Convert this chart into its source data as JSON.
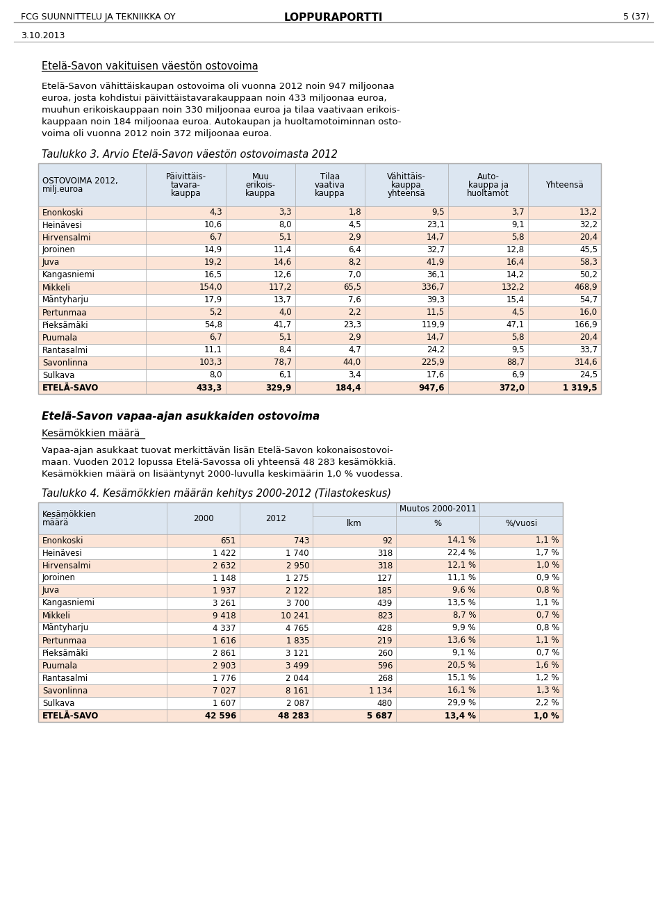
{
  "header_left": "FCG SUUNNITTELU JA TEKNIIKKA OY",
  "header_center": "LOPPURAPORTTI",
  "header_right": "5 (37)",
  "date": "3.10.2013",
  "intro_title": "Etelä-Savon vakituisen väestön ostovoima",
  "intro_body": [
    "Etelä-Savon vähittäiskaupan ostovoima oli vuonna 2012 noin 947 miljoonaa",
    "euroa, josta kohdistui päivittäistavarakauppaan noin 433 miljoonaa euroa,",
    "muuhun erikoiskauppaan noin 330 miljoonaa euroa ja tilaa vaativaan erikois-",
    "kauppaan noin 184 miljoonaa euroa. Autokaupan ja huoltamotoiminnan osto-",
    "voima oli vuonna 2012 noin 372 miljoonaa euroa."
  ],
  "table1_title": "Taulukko 3. Arvio Etelä-Savon väestön ostovoimasta 2012",
  "table1_headers": [
    "OSTOVOIMA 2012,\nmilj.euroa",
    "Päivittäis-\ntavara-\nkauppa",
    "Muu\nerikois-\nkauppa",
    "Tilaa\nvaativa\nkauppa",
    "Vähittäis-\nkauppa\nyhteensä",
    "Auto-\nkauppa ja\nhuoltamot",
    "Yhteensä"
  ],
  "table1_col_widths": [
    155,
    115,
    100,
    100,
    120,
    115,
    105
  ],
  "table1_rows": [
    [
      "Enonkoski",
      "4,3",
      "3,3",
      "1,8",
      "9,5",
      "3,7",
      "13,2"
    ],
    [
      "Heinävesi",
      "10,6",
      "8,0",
      "4,5",
      "23,1",
      "9,1",
      "32,2"
    ],
    [
      "Hirvensalmi",
      "6,7",
      "5,1",
      "2,9",
      "14,7",
      "5,8",
      "20,4"
    ],
    [
      "Joroinen",
      "14,9",
      "11,4",
      "6,4",
      "32,7",
      "12,8",
      "45,5"
    ],
    [
      "Juva",
      "19,2",
      "14,6",
      "8,2",
      "41,9",
      "16,4",
      "58,3"
    ],
    [
      "Kangasniemi",
      "16,5",
      "12,6",
      "7,0",
      "36,1",
      "14,2",
      "50,2"
    ],
    [
      "Mikkeli",
      "154,0",
      "117,2",
      "65,5",
      "336,7",
      "132,2",
      "468,9"
    ],
    [
      "Mäntyharju",
      "17,9",
      "13,7",
      "7,6",
      "39,3",
      "15,4",
      "54,7"
    ],
    [
      "Pertunmaa",
      "5,2",
      "4,0",
      "2,2",
      "11,5",
      "4,5",
      "16,0"
    ],
    [
      "Pieksämäki",
      "54,8",
      "41,7",
      "23,3",
      "119,9",
      "47,1",
      "166,9"
    ],
    [
      "Puumala",
      "6,7",
      "5,1",
      "2,9",
      "14,7",
      "5,8",
      "20,4"
    ],
    [
      "Rantasalmi",
      "11,1",
      "8,4",
      "4,7",
      "24,2",
      "9,5",
      "33,7"
    ],
    [
      "Savonlinna",
      "103,3",
      "78,7",
      "44,0",
      "225,9",
      "88,7",
      "314,6"
    ],
    [
      "Sulkava",
      "8,0",
      "6,1",
      "3,4",
      "17,6",
      "6,9",
      "24,5"
    ]
  ],
  "table1_footer": [
    "ETELÄ-SAVO",
    "433,3",
    "329,9",
    "184,4",
    "947,6",
    "372,0",
    "1 319,5"
  ],
  "section2_title": "Etelä-Savon vapaa-ajan asukkaiden ostovoima",
  "section2_subtitle": "Kesämökkien määrä",
  "section2_body": [
    "Vapaa-ajan asukkaat tuovat merkittävän lisän Etelä-Savon kokonaisostovoi-",
    "maan. Vuoden 2012 lopussa Etelä-Savossa oli yhteensä 48 283 kesämökkiä.",
    "Kesämökkien määrä on lisääntynyt 2000-luvulla keskimäärin 1,0 % vuodessa."
  ],
  "table2_title": "Taulukko 4. Kesämökkien määrän kehitys 2000-2012 (Tilastokeskus)",
  "table2_col_widths": [
    185,
    105,
    105,
    120,
    120,
    120
  ],
  "table2_headers_top": [
    "",
    "",
    "",
    "Muutos 2000-2011",
    "",
    ""
  ],
  "table2_headers_bot": [
    "Kesämökkien\nmäärä",
    "2000",
    "2012",
    "lkm",
    "%",
    "%/vuosi"
  ],
  "table2_rows": [
    [
      "Enonkoski",
      "651",
      "743",
      "92",
      "14,1 %",
      "1,1 %"
    ],
    [
      "Heinävesi",
      "1 422",
      "1 740",
      "318",
      "22,4 %",
      "1,7 %"
    ],
    [
      "Hirvensalmi",
      "2 632",
      "2 950",
      "318",
      "12,1 %",
      "1,0 %"
    ],
    [
      "Joroinen",
      "1 148",
      "1 275",
      "127",
      "11,1 %",
      "0,9 %"
    ],
    [
      "Juva",
      "1 937",
      "2 122",
      "185",
      "9,6 %",
      "0,8 %"
    ],
    [
      "Kangasniemi",
      "3 261",
      "3 700",
      "439",
      "13,5 %",
      "1,1 %"
    ],
    [
      "Mikkeli",
      "9 418",
      "10 241",
      "823",
      "8,7 %",
      "0,7 %"
    ],
    [
      "Mäntyharju",
      "4 337",
      "4 765",
      "428",
      "9,9 %",
      "0,8 %"
    ],
    [
      "Pertunmaa",
      "1 616",
      "1 835",
      "219",
      "13,6 %",
      "1,1 %"
    ],
    [
      "Pieksämäki",
      "2 861",
      "3 121",
      "260",
      "9,1 %",
      "0,7 %"
    ],
    [
      "Puumala",
      "2 903",
      "3 499",
      "596",
      "20,5 %",
      "1,6 %"
    ],
    [
      "Rantasalmi",
      "1 776",
      "2 044",
      "268",
      "15,1 %",
      "1,2 %"
    ],
    [
      "Savonlinna",
      "7 027",
      "8 161",
      "1 134",
      "16,1 %",
      "1,3 %"
    ],
    [
      "Sulkava",
      "1 607",
      "2 087",
      "480",
      "29,9 %",
      "2,2 %"
    ]
  ],
  "table2_footer": [
    "ETELÄ-SAVO",
    "42 596",
    "48 283",
    "5 687",
    "13,4 %",
    "1,0 %"
  ],
  "color_header_bg": "#dce6f1",
  "color_row_odd": "#fce4d6",
  "color_row_even": "#ffffff",
  "color_border": "#aaaaaa",
  "color_line": "#999999"
}
